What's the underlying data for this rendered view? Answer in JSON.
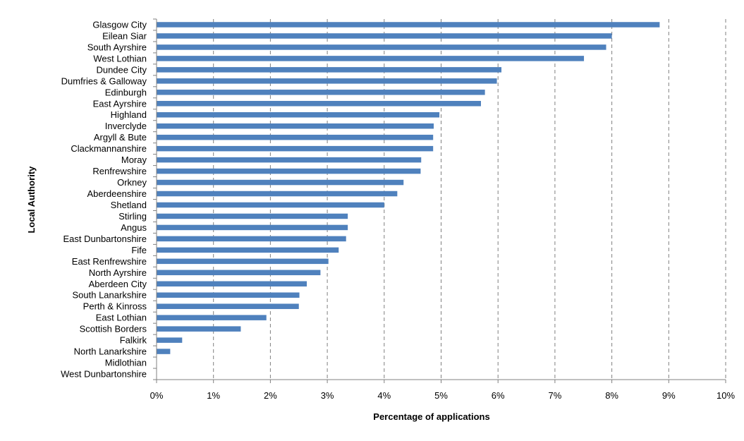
{
  "chart_data": {
    "type": "bar",
    "orientation": "horizontal",
    "xlabel": "Percentage of applications",
    "ylabel": "Local Authority",
    "xlim": [
      0,
      10
    ],
    "x_ticks": [
      "0%",
      "1%",
      "2%",
      "3%",
      "4%",
      "5%",
      "6%",
      "7%",
      "8%",
      "9%",
      "10%"
    ],
    "grid": "vertical dashed",
    "legend": "none",
    "bar_color": "#4f81bd",
    "categories": [
      "Glasgow City",
      "Eilean Siar",
      "South Ayrshire",
      "West Lothian",
      "Dundee City",
      "Dumfries & Galloway",
      "Edinburgh",
      "East Ayrshire",
      "Highland",
      "Inverclyde",
      "Argyll & Bute",
      "Clackmannanshire",
      "Moray",
      "Renfrewshire",
      "Orkney",
      "Aberdeenshire",
      "Shetland",
      "Stirling",
      "Angus",
      "East Dunbartonshire",
      "Fife",
      "East Renfrewshire",
      "North Ayrshire",
      "Aberdeen City",
      "South Lanarkshire",
      "Perth & Kinross",
      "East Lothian",
      "Scottish Borders",
      "Falkirk",
      "North Lanarkshire",
      "Midlothian",
      "West Dunbartonshire"
    ],
    "values": [
      8.84,
      8.0,
      7.9,
      7.51,
      6.06,
      5.98,
      5.77,
      5.7,
      4.97,
      4.87,
      4.86,
      4.86,
      4.65,
      4.64,
      4.34,
      4.23,
      4.0,
      3.36,
      3.36,
      3.33,
      3.2,
      3.02,
      2.88,
      2.64,
      2.51,
      2.5,
      1.93,
      1.48,
      0.45,
      0.24,
      0.0,
      0.0
    ]
  }
}
